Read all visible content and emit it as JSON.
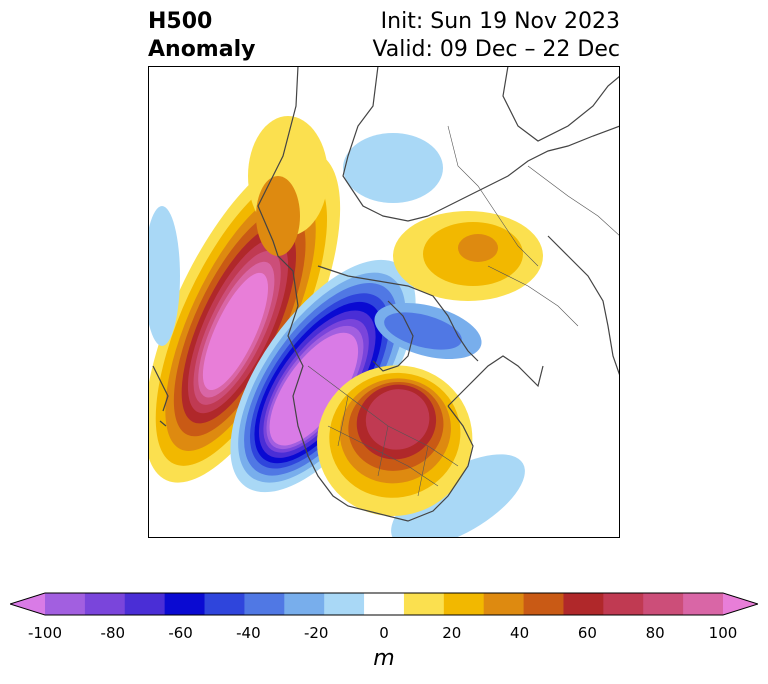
{
  "title": {
    "left_line1": "H500",
    "left_line2": "Anomaly",
    "right_line1": "Init: Sun 19 Nov 2023",
    "right_line2": "Valid: 09 Dec – 22 Dec"
  },
  "colorbar": {
    "unit": "m",
    "ticks": [
      "-100",
      "-80",
      "-60",
      "-40",
      "-20",
      "0",
      "20",
      "40",
      "60",
      "80",
      "100"
    ],
    "colors": [
      "#d97be6",
      "#a25fe0",
      "#7a45db",
      "#4a2ed6",
      "#0a0ad2",
      "#2f45dc",
      "#5078e4",
      "#78aeec",
      "#a9d8f6",
      "#ffffff",
      "#fbe04f",
      "#f2b800",
      "#de8a10",
      "#c95a15",
      "#b0282a",
      "#c03a52",
      "#cc4e79",
      "#d966a6",
      "#e87ed8"
    ]
  }
}
